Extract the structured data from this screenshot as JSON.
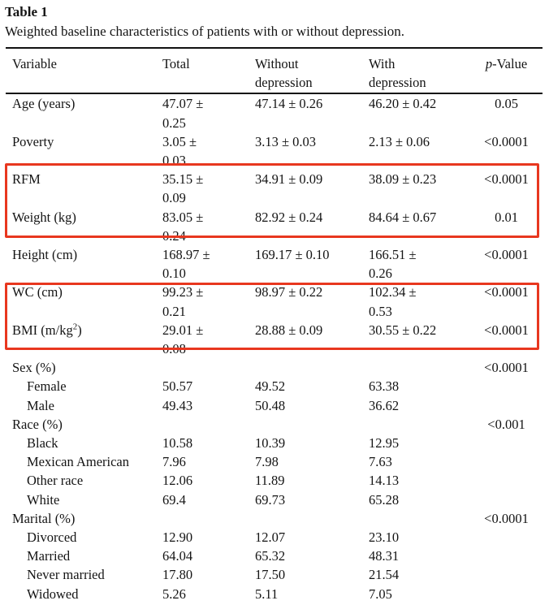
{
  "title": "Table 1",
  "caption": "Weighted baseline characteristics of patients with or without depression.",
  "table": {
    "columns": [
      {
        "key": "variable",
        "label": "Variable"
      },
      {
        "key": "total",
        "label": "Total"
      },
      {
        "key": "without",
        "label": "Without\ndepression"
      },
      {
        "key": "with",
        "label": "With\ndepression"
      },
      {
        "key": "p",
        "label_italic": "p",
        "label_rest": "-Value"
      }
    ],
    "rows": [
      {
        "variable": "Age (years)",
        "indent": false,
        "total": "47.07 ±\n0.25",
        "without": "47.14 ± 0.26",
        "with": "46.20 ± 0.42",
        "p": "0.05"
      },
      {
        "variable": "Poverty",
        "indent": false,
        "total": "3.05 ±\n0.03",
        "without": "3.13 ± 0.03",
        "with": "2.13 ± 0.06",
        "p": "<0.0001"
      },
      {
        "variable": "RFM",
        "indent": false,
        "total": "35.15 ±\n0.09",
        "without": "34.91 ± 0.09",
        "with": "38.09 ± 0.23",
        "p": "<0.0001"
      },
      {
        "variable": "Weight (kg)",
        "indent": false,
        "total": "83.05 ±\n0.24",
        "without": "82.92 ± 0.24",
        "with": "84.64 ± 0.67",
        "p": "0.01"
      },
      {
        "variable": "Height (cm)",
        "indent": false,
        "total": "168.97 ±\n0.10",
        "without": "169.17 ± 0.10",
        "with": "166.51 ±\n0.26",
        "p": "<0.0001"
      },
      {
        "variable": "WC (cm)",
        "indent": false,
        "total": "99.23 ±\n0.21",
        "without": "98.97 ± 0.22",
        "with": "102.34 ±\n0.53",
        "p": "<0.0001"
      },
      {
        "variable": "BMI (m/kg^2)",
        "indent": false,
        "total": "29.01 ±\n0.08",
        "without": "28.88 ± 0.09",
        "with": "30.55 ± 0.22",
        "p": "<0.0001"
      },
      {
        "variable": "Sex (%)",
        "indent": false,
        "total": "",
        "without": "",
        "with": "",
        "p": "<0.0001"
      },
      {
        "variable": "Female",
        "indent": true,
        "total": "50.57",
        "without": "49.52",
        "with": "63.38",
        "p": ""
      },
      {
        "variable": "Male",
        "indent": true,
        "total": "49.43",
        "without": "50.48",
        "with": "36.62",
        "p": ""
      },
      {
        "variable": "Race (%)",
        "indent": false,
        "total": "",
        "without": "",
        "with": "",
        "p": "<0.001"
      },
      {
        "variable": "Black",
        "indent": true,
        "total": "10.58",
        "without": "10.39",
        "with": "12.95",
        "p": ""
      },
      {
        "variable": "Mexican American",
        "indent": true,
        "total": "7.96",
        "without": "7.98",
        "with": "7.63",
        "p": ""
      },
      {
        "variable": "Other race",
        "indent": true,
        "total": "12.06",
        "without": "11.89",
        "with": "14.13",
        "p": ""
      },
      {
        "variable": "White",
        "indent": true,
        "total": "69.4",
        "without": "69.73",
        "with": "65.28",
        "p": ""
      },
      {
        "variable": "Marital (%)",
        "indent": false,
        "total": "",
        "without": "",
        "with": "",
        "p": "<0.0001"
      },
      {
        "variable": "Divorced",
        "indent": true,
        "total": "12.90",
        "without": "12.07",
        "with": "23.10",
        "p": ""
      },
      {
        "variable": "Married",
        "indent": true,
        "total": "64.04",
        "without": "65.32",
        "with": "48.31",
        "p": ""
      },
      {
        "variable": "Never married",
        "indent": true,
        "total": "17.80",
        "without": "17.50",
        "with": "21.54",
        "p": ""
      },
      {
        "variable": "Widowed",
        "indent": true,
        "total": "5.26",
        "without": "5.11",
        "with": "7.05",
        "p": ""
      }
    ]
  },
  "annotations": {
    "color": "#e8371f",
    "boxes": [
      {
        "id": "highlight-box-rfm-weight",
        "rows": [
          "RFM",
          "Weight (kg)"
        ]
      },
      {
        "id": "highlight-box-wc-bmi",
        "rows": [
          "WC (cm)",
          "BMI (m/kg^2)"
        ]
      }
    ]
  }
}
